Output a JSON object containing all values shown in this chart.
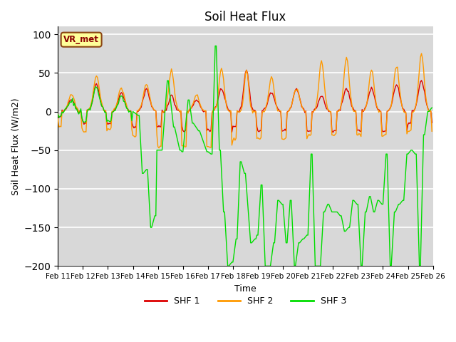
{
  "title": "Soil Heat Flux",
  "ylabel": "Soil Heat Flux (W/m2)",
  "xlabel": "Time",
  "ylim": [
    -200,
    110
  ],
  "xlim": [
    0,
    360
  ],
  "bg_color": "#d8d8d8",
  "grid_color": "white",
  "shf1_color": "#dd0000",
  "shf2_color": "#ff9900",
  "shf3_color": "#00dd00",
  "legend_labels": [
    "SHF 1",
    "SHF 2",
    "SHF 3"
  ],
  "annotation_text": "VR_met",
  "xtick_labels": [
    "Feb 11",
    "Feb 12",
    "Feb 13",
    "Feb 14",
    "Feb 15",
    "Feb 16",
    "Feb 17",
    "Feb 18",
    "Feb 19",
    "Feb 20",
    "Feb 21",
    "Feb 22",
    "Feb 23",
    "Feb 24",
    "Feb 25",
    "Feb 26"
  ],
  "xtick_positions": [
    0,
    24,
    48,
    72,
    96,
    120,
    144,
    168,
    192,
    216,
    240,
    264,
    288,
    312,
    336,
    360
  ],
  "n_points": 360
}
